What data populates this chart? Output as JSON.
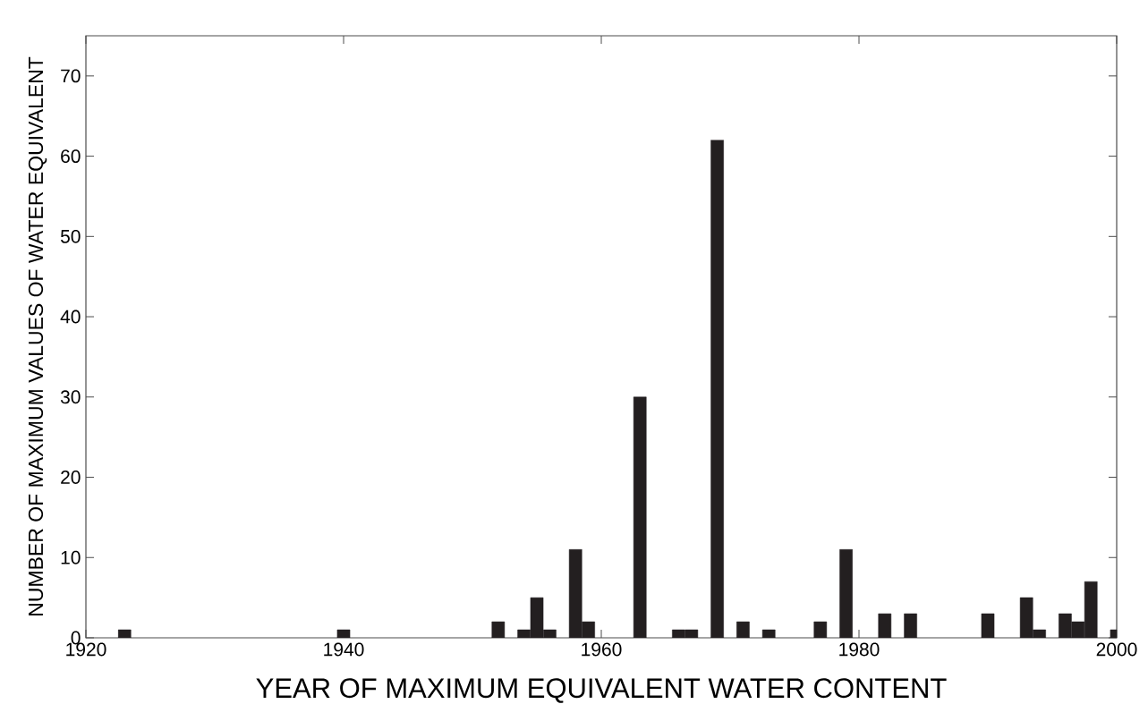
{
  "chart_data": {
    "type": "bar",
    "xlabel": "YEAR OF MAXIMUM EQUIVALENT WATER CONTENT",
    "ylabel": "NUMBER OF MAXIMUM VALUES OF WATER EQUIVALENT",
    "x": [
      1923,
      1940,
      1952,
      1954,
      1955,
      1956,
      1958,
      1959,
      1963,
      1966,
      1967,
      1969,
      1971,
      1973,
      1977,
      1979,
      1982,
      1984,
      1990,
      1993,
      1994,
      1996,
      1997,
      1998,
      2000
    ],
    "values": [
      1,
      1,
      2,
      1,
      5,
      1,
      11,
      2,
      30,
      1,
      1,
      62,
      2,
      1,
      2,
      11,
      3,
      3,
      3,
      5,
      1,
      3,
      2,
      7,
      1
    ],
    "color": "#231f20",
    "xlim": [
      1920,
      2000
    ],
    "xticks": [
      1920,
      1940,
      1960,
      1980,
      2000
    ],
    "ylim": [
      0,
      75
    ],
    "yticks": [
      0,
      10,
      20,
      30,
      40,
      50,
      60,
      70
    ],
    "grid": false
  }
}
